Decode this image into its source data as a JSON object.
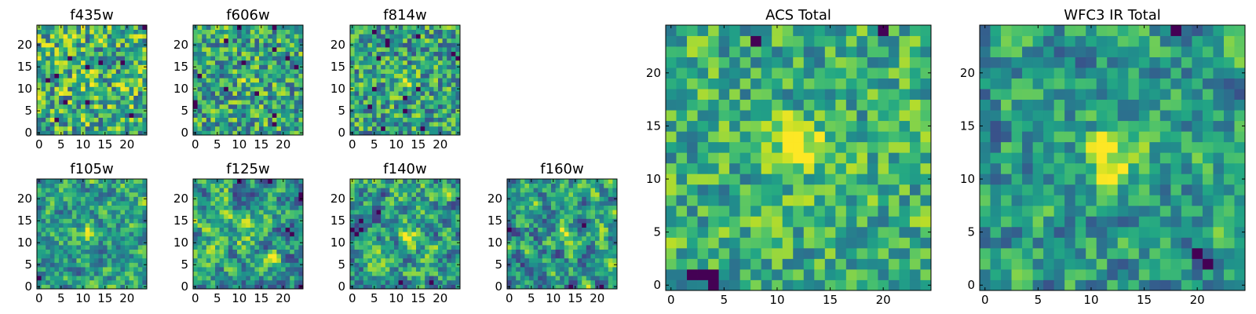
{
  "chart_data": {
    "type": "heatmap",
    "colormap": "viridis",
    "grid": false,
    "panels": [
      {
        "title": "f435w",
        "grid_size": [
          25,
          25
        ],
        "xlim": [
          0,
          24
        ],
        "ylim": [
          0,
          24
        ],
        "xticks": [
          "0",
          "5",
          "10",
          "15",
          "20"
        ],
        "yticks": [
          "0",
          "5",
          "10",
          "15",
          "20"
        ],
        "seed": 11,
        "peak": [
          12,
          12
        ],
        "peak_strength": 0.08,
        "noise": 0.38,
        "smooth": 0.05,
        "base": 0.62
      },
      {
        "title": "f606w",
        "grid_size": [
          25,
          25
        ],
        "xlim": [
          0,
          24
        ],
        "ylim": [
          0,
          24
        ],
        "xticks": [
          "0",
          "5",
          "10",
          "15",
          "20"
        ],
        "yticks": [
          "0",
          "5",
          "10",
          "15",
          "20"
        ],
        "seed": 23,
        "peak": [
          12,
          12
        ],
        "peak_strength": 0.18,
        "noise": 0.35,
        "smooth": 0.05,
        "base": 0.58
      },
      {
        "title": "f814w",
        "grid_size": [
          25,
          25
        ],
        "xlim": [
          0,
          24
        ],
        "ylim": [
          0,
          24
        ],
        "xticks": [
          "0",
          "5",
          "10",
          "15",
          "20"
        ],
        "yticks": [
          "0",
          "5",
          "10",
          "15",
          "20"
        ],
        "seed": 37,
        "peak": [
          12,
          12
        ],
        "peak_strength": 0.25,
        "noise": 0.34,
        "smooth": 0.05,
        "base": 0.56
      },
      {
        "title": "f105w",
        "grid_size": [
          25,
          25
        ],
        "xlim": [
          0,
          24
        ],
        "ylim": [
          0,
          24
        ],
        "xticks": [
          "0",
          "5",
          "10",
          "15",
          "20"
        ],
        "yticks": [
          "0",
          "5",
          "10",
          "15",
          "20"
        ],
        "seed": 41,
        "peak": [
          11,
          13
        ],
        "peak_strength": 0.28,
        "noise": 0.34,
        "smooth": 0.35,
        "base": 0.55
      },
      {
        "title": "f125w",
        "grid_size": [
          25,
          25
        ],
        "xlim": [
          0,
          24
        ],
        "ylim": [
          0,
          24
        ],
        "xticks": [
          "0",
          "5",
          "10",
          "15",
          "20"
        ],
        "yticks": [
          "0",
          "5",
          "10",
          "15",
          "20"
        ],
        "seed": 53,
        "peak": [
          12,
          12
        ],
        "peak_strength": 0.18,
        "noise": 0.42,
        "smooth": 0.45,
        "base": 0.56
      },
      {
        "title": "f140w",
        "grid_size": [
          25,
          25
        ],
        "xlim": [
          0,
          24
        ],
        "ylim": [
          0,
          24
        ],
        "xticks": [
          "0",
          "5",
          "10",
          "15",
          "20"
        ],
        "yticks": [
          "0",
          "5",
          "10",
          "15",
          "20"
        ],
        "seed": 67,
        "peak": [
          13,
          12
        ],
        "peak_strength": 0.22,
        "noise": 0.42,
        "smooth": 0.45,
        "base": 0.56
      },
      {
        "title": "f160w",
        "grid_size": [
          25,
          25
        ],
        "xlim": [
          0,
          24
        ],
        "ylim": [
          0,
          24
        ],
        "xticks": [
          "0",
          "5",
          "10",
          "15",
          "20"
        ],
        "yticks": [
          "0",
          "5",
          "10",
          "15",
          "20"
        ],
        "seed": 79,
        "peak": [
          13,
          12
        ],
        "peak_strength": 0.3,
        "noise": 0.42,
        "smooth": 0.45,
        "base": 0.54
      },
      {
        "title": "ACS Total",
        "grid_size": [
          25,
          25
        ],
        "xlim": [
          0,
          24
        ],
        "ylim": [
          0,
          24
        ],
        "xticks": [
          "0",
          "5",
          "10",
          "15",
          "20"
        ],
        "yticks": [
          "0",
          "5",
          "10",
          "15",
          "20"
        ],
        "seed": 97,
        "peak": [
          12,
          13
        ],
        "peak_strength": 0.45,
        "noise": 0.28,
        "smooth": 0.1,
        "base": 0.62
      },
      {
        "title": "WFC3 IR Total",
        "grid_size": [
          25,
          25
        ],
        "xlim": [
          0,
          24
        ],
        "ylim": [
          0,
          24
        ],
        "xticks": [
          "0",
          "5",
          "10",
          "15",
          "20"
        ],
        "yticks": [
          "0",
          "5",
          "10",
          "15",
          "20"
        ],
        "seed": 113,
        "peak": [
          12,
          12
        ],
        "peak_strength": 0.45,
        "noise": 0.32,
        "smooth": 0.3,
        "base": 0.54
      }
    ]
  }
}
